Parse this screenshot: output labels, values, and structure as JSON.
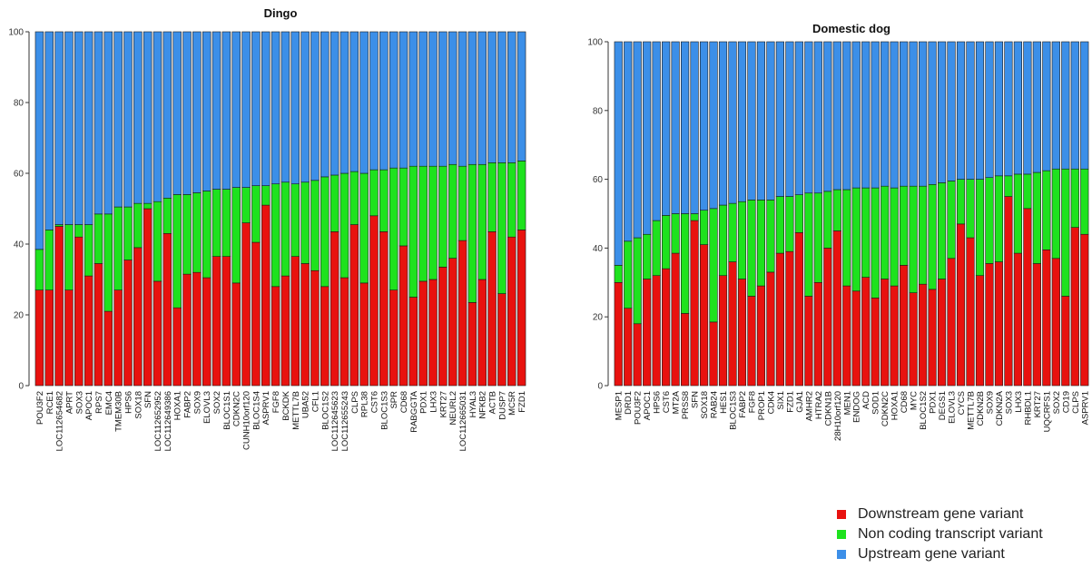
{
  "colors": {
    "downstream": "#e8120f",
    "noncoding": "#1ee21e",
    "upstream": "#3c8fe8",
    "outline": "#1a1a1a"
  },
  "legend": [
    {
      "label": "Downstream gene variant",
      "color": "#e8120f"
    },
    {
      "label": "Non coding transcript variant",
      "color": "#1ee21e"
    },
    {
      "label": "Upstream gene variant",
      "color": "#3c8fe8"
    }
  ],
  "chart_data": [
    {
      "type": "bar",
      "stacked": true,
      "title": "Dingo",
      "ylim": [
        0,
        100
      ],
      "yticks": [
        0,
        20,
        40,
        60,
        80,
        100
      ],
      "categories": [
        "POU3F2",
        "RCE1",
        "LOC112654682",
        "APRT",
        "SOX3",
        "APOC1",
        "RPS7",
        "EMC4",
        "TMEM30B",
        "HPS6",
        "SOX18",
        "SFN",
        "LOC112652952",
        "LOC112649386",
        "HOXA1",
        "FABP2",
        "SOX9",
        "ELOVL3",
        "SOX2",
        "BLOC1S1",
        "CDKN2C",
        "CUNH10orf120",
        "BLOC1S4",
        "ASPRV1",
        "FGF8",
        "BCKDK",
        "METTL7B",
        "UBA52",
        "CFL1",
        "BLOC1S2",
        "LOC112645623",
        "LOC112655243",
        "CLPS",
        "RPL38",
        "CST6",
        "BLOC1S3",
        "SPR",
        "CD68",
        "RABGGTA",
        "PDX1",
        "LHX3",
        "KRT27",
        "NEURL2",
        "LOC112665031",
        "HYAL3",
        "NFKB2",
        "ACTB",
        "DUSP7",
        "MC5R",
        "FZD1"
      ],
      "series": [
        {
          "name": "Downstream gene variant",
          "values": [
            27,
            27,
            45,
            27,
            42,
            31,
            34.5,
            21,
            27,
            35.5,
            39,
            50,
            29.5,
            43,
            22,
            31.5,
            32,
            30.5,
            36.5,
            36.5,
            29,
            46,
            40.5,
            51,
            28,
            31,
            36.5,
            34.5,
            32.5,
            28,
            43.5,
            30.5,
            45.5,
            29,
            48,
            43.5,
            27,
            39.5,
            25,
            29.5,
            30,
            33.5,
            36,
            41,
            23.5,
            30,
            43.5,
            26,
            42,
            44
          ]
        },
        {
          "name": "Non coding transcript variant",
          "values": [
            11.5,
            17,
            0.5,
            18.5,
            3.5,
            14.5,
            14,
            27.5,
            23.5,
            15,
            12.5,
            1.5,
            22.5,
            10,
            32,
            22.5,
            22.5,
            24.5,
            19,
            19,
            27,
            10,
            16,
            5.5,
            29,
            26.5,
            20.5,
            23,
            25.5,
            31,
            16,
            29.5,
            15,
            31,
            13,
            17.5,
            34.5,
            22,
            37,
            32.5,
            32,
            28.5,
            26.5,
            21,
            39,
            32.5,
            19.5,
            37,
            21,
            19.5
          ]
        },
        {
          "name": "Upstream gene variant",
          "values": [
            61.5,
            56,
            54.5,
            54.5,
            54.5,
            54.5,
            51.5,
            51.5,
            49.5,
            49.5,
            48.5,
            48.5,
            48,
            47,
            46,
            46,
            45.5,
            45,
            44.5,
            44.5,
            44,
            44,
            43.5,
            43.5,
            43,
            42.5,
            43,
            42.5,
            42,
            41,
            40.5,
            40,
            39.5,
            40,
            39,
            39,
            38.5,
            38.5,
            38,
            38,
            38,
            38,
            37.5,
            38,
            37.5,
            37.5,
            37,
            37,
            37,
            36.5
          ]
        }
      ]
    },
    {
      "type": "bar",
      "stacked": true,
      "title": "Domestic dog",
      "ylim": [
        0,
        100
      ],
      "yticks": [
        0,
        20,
        40,
        60,
        80,
        100
      ],
      "categories": [
        "MESP1",
        "DRD1",
        "POU3F2",
        "APOC1",
        "HPS6",
        "CST6",
        "MT2A",
        "PRSS8",
        "SFN",
        "SOX18",
        "RAB24",
        "HES1",
        "BLOC1S3",
        "FABP2",
        "FGF8",
        "PROP1",
        "CDK4",
        "SIX1",
        "FZD1",
        "GJA1",
        "AMHR2",
        "HTRA2",
        "CDKN1B",
        "28H10orf120",
        "MEN1",
        "ENDOG",
        "ACD",
        "SOD1",
        "CDKN2C",
        "HOXA1",
        "CD68",
        "MYC",
        "BLOC1S2",
        "PDX1",
        "DEGS1",
        "ELOVL3",
        "CYCS",
        "METTL7B",
        "CDKN2B",
        "SOX9",
        "CDKN2A",
        "SOX3",
        "LHX3",
        "RHBDL1",
        "KRT27",
        "UQCRFS1",
        "SOX2",
        "CD19",
        "CLPS",
        "ASPRV1"
      ],
      "series": [
        {
          "name": "Downstream gene variant",
          "values": [
            30,
            22.5,
            18,
            31,
            32,
            34,
            38.5,
            21,
            48,
            41,
            18.5,
            32,
            36,
            31,
            26,
            29,
            33,
            38.5,
            39,
            44.5,
            26,
            30,
            40,
            45,
            29,
            27.5,
            31.5,
            25.5,
            31,
            29,
            35,
            27,
            29.5,
            28,
            31,
            37,
            47,
            43,
            32,
            35.5,
            36,
            55,
            38.5,
            51.5,
            35.5,
            39.5,
            37,
            26,
            46,
            44
          ]
        },
        {
          "name": "Non coding transcript variant",
          "values": [
            5,
            19.5,
            25,
            13,
            16,
            15.5,
            11.5,
            29,
            2,
            10,
            33,
            20.5,
            17,
            22.5,
            28,
            25,
            21,
            16.5,
            16,
            11,
            30,
            26,
            16.5,
            12,
            28,
            30,
            26,
            32,
            27,
            28.5,
            23,
            31,
            28.5,
            30.5,
            28,
            22.5,
            13,
            17,
            28,
            25,
            25,
            6,
            23,
            10,
            26.5,
            23,
            26,
            37,
            17,
            19
          ]
        },
        {
          "name": "Upstream gene variant",
          "values": [
            65,
            58,
            57,
            56,
            52,
            50.5,
            50,
            50,
            50,
            49,
            48.5,
            47.5,
            47,
            46.5,
            46,
            46,
            46,
            45,
            45,
            44.5,
            44,
            44,
            43.5,
            43,
            43,
            42.5,
            42.5,
            42.5,
            42,
            42.5,
            42,
            42,
            42,
            41.5,
            41,
            40.5,
            40,
            40,
            40,
            39.5,
            39,
            39,
            38.5,
            38.5,
            38,
            37.5,
            37,
            37,
            37,
            37
          ]
        }
      ]
    }
  ]
}
